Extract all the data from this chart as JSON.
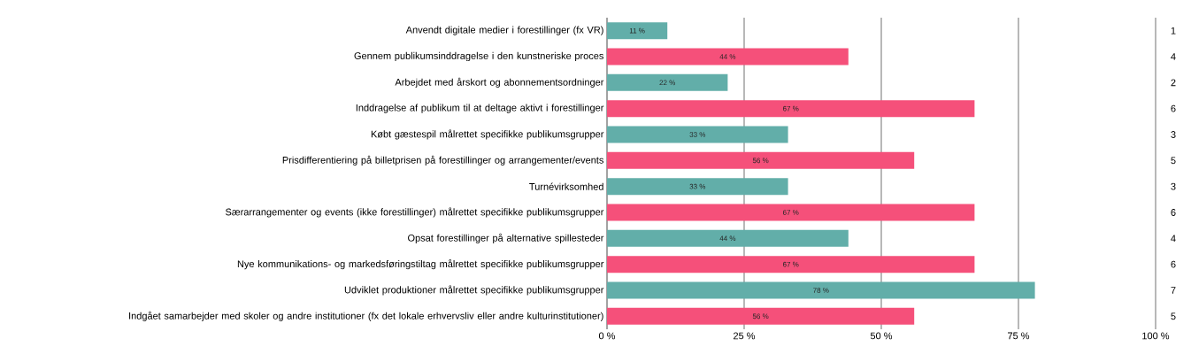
{
  "chart_data": {
    "type": "bar",
    "orientation": "horizontal",
    "categories": [
      "Anvendt digitale medier i forestillinger (fx VR)",
      "Gennem publikumsinddragelse i den kunstneriske proces",
      "Arbejdet med årskort og abonnementsordninger",
      "Inddragelse af publikum til at deltage aktivt i forestillinger",
      "Købt gæstespil målrettet specifikke publikumsgrupper",
      "Prisdifferentiering på billetprisen på forestillinger og arrangementer/events",
      "Turnévirksomhed",
      "Særarrangementer og events (ikke forestillinger) målrettet specifikke publikumsgrupper",
      "Opsat forestillinger på alternative spillesteder",
      "Nye kommunikations- og markedsføringstiltag målrettet specifikke publikumsgrupper",
      "Udviklet produktioner målrettet specifikke publikumsgrupper",
      "Indgået samarbejder med skoler og andre institutioner (fx det lokale erhvervsliv eller andre kulturinstitutioner)"
    ],
    "values": [
      11,
      44,
      22,
      67,
      33,
      56,
      33,
      67,
      44,
      67,
      78,
      56
    ],
    "value_labels": [
      "11 %",
      "44 %",
      "22 %",
      "67 %",
      "33 %",
      "56 %",
      "33 %",
      "67 %",
      "44 %",
      "67 %",
      "78 %",
      "56 %"
    ],
    "colors": [
      "#62aea9",
      "#f5507a",
      "#62aea9",
      "#f5507a",
      "#62aea9",
      "#f5507a",
      "#62aea9",
      "#f5507a",
      "#62aea9",
      "#f5507a",
      "#62aea9",
      "#f5507a"
    ],
    "xlim": [
      0,
      100
    ],
    "xticks": [
      {
        "value": 0,
        "label": "0 %"
      },
      {
        "value": 25,
        "label": "25 %"
      },
      {
        "value": 50,
        "label": "50 %"
      },
      {
        "value": 75,
        "label": "75 %"
      },
      {
        "value": 100,
        "label": "100 %"
      }
    ],
    "grid": "x",
    "annotations": [
      "1",
      "4",
      "2",
      "6",
      "3",
      "5",
      "3",
      "6",
      "4",
      "6",
      "7",
      "5"
    ]
  }
}
